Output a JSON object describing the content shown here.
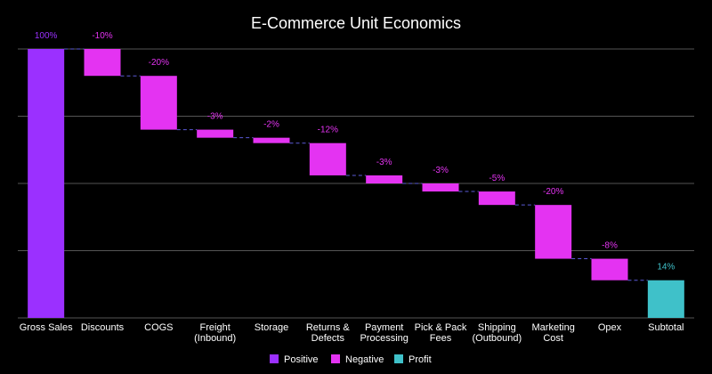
{
  "chart_data": {
    "type": "waterfall",
    "title": "E-Commerce Unit Economics",
    "xlabel": "",
    "ylabel": "",
    "ylim": [
      0,
      100
    ],
    "grid": true,
    "legend_placement": "bottom",
    "categories": [
      [
        "Gross Sales"
      ],
      [
        "Discounts"
      ],
      [
        "COGS"
      ],
      [
        "Freight",
        "(Inbound)"
      ],
      [
        "Storage"
      ],
      [
        "Returns &",
        "Defects"
      ],
      [
        "Payment",
        "Processing"
      ],
      [
        "Pick & Pack",
        "Fees"
      ],
      [
        "Shipping",
        "(Outbound)"
      ],
      [
        "Marketing",
        "Cost"
      ],
      [
        "Opex"
      ],
      [
        "Subtotal"
      ]
    ],
    "values": [
      100,
      -10,
      -20,
      -3,
      -2,
      -12,
      -3,
      -3,
      -5,
      -20,
      -8,
      14
    ],
    "kinds": [
      "positive",
      "negative",
      "negative",
      "negative",
      "negative",
      "negative",
      "negative",
      "negative",
      "negative",
      "negative",
      "negative",
      "total"
    ],
    "data_labels": [
      "100%",
      "-10%",
      "-20%",
      "-3%",
      "-2%",
      "-12%",
      "-3%",
      "-3%",
      "-5%",
      "-20%",
      "-8%",
      "14%"
    ],
    "legend": [
      {
        "key": "positive",
        "label": "Positive"
      },
      {
        "key": "negative",
        "label": "Negative"
      },
      {
        "key": "total",
        "label": "Profit"
      }
    ],
    "colors": {
      "positive": "#9b30ff",
      "negative": "#e433f2",
      "total": "#3fc1c9",
      "connector": "#5a5ad6",
      "grid": "#555555",
      "background": "#000000"
    }
  }
}
